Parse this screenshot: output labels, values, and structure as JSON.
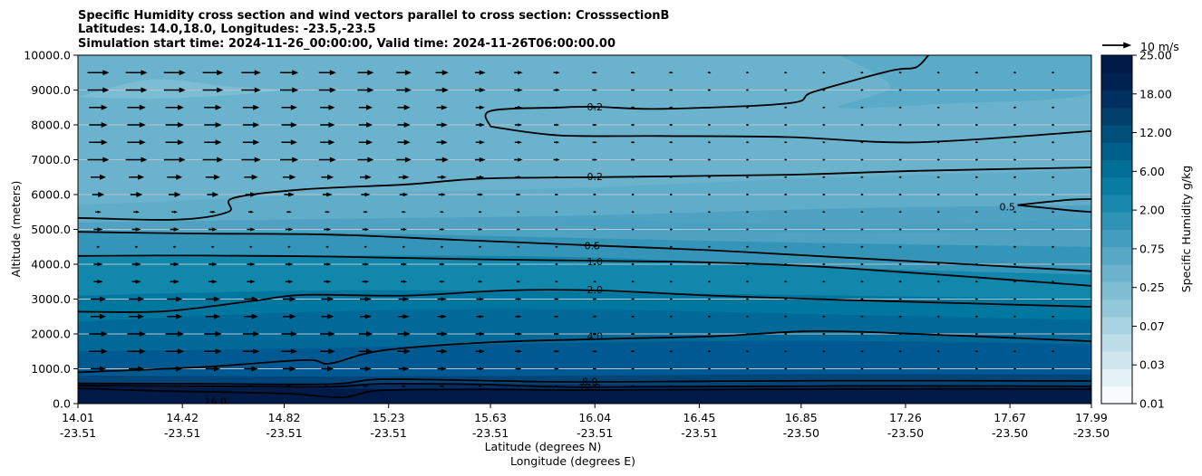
{
  "chart_data": {
    "type": "heatmap",
    "subtype": "contourf cross-section with contour lines and wind vectors",
    "title_lines": [
      "Specific Humidity cross section and wind vectors parallel to cross section: CrosssectionB",
      "Latitudes: 14.0,18.0, Longitudes: -23.5,-23.5",
      "Simulation start time: 2024-11-26_00:00:00, Valid time: 2024-11-26T06:00:00.00"
    ],
    "xlabel_lines": [
      "Latitude (degrees N)",
      "Longitude (degrees E)"
    ],
    "ylabel": "Altitude (meters)",
    "xlim": [
      14.01,
      17.99
    ],
    "ylim": [
      0,
      10000
    ],
    "x_ticks": [
      {
        "lat": "14.01",
        "lon": "-23.51",
        "value": 14.01
      },
      {
        "lat": "14.42",
        "lon": "-23.51",
        "value": 14.42
      },
      {
        "lat": "14.82",
        "lon": "-23.51",
        "value": 14.82
      },
      {
        "lat": "15.23",
        "lon": "-23.51",
        "value": 15.23
      },
      {
        "lat": "15.63",
        "lon": "-23.51",
        "value": 15.63
      },
      {
        "lat": "16.04",
        "lon": "-23.51",
        "value": 16.04
      },
      {
        "lat": "16.45",
        "lon": "-23.51",
        "value": 16.45
      },
      {
        "lat": "16.85",
        "lon": "-23.50",
        "value": 16.85
      },
      {
        "lat": "17.26",
        "lon": "-23.50",
        "value": 17.26
      },
      {
        "lat": "17.67",
        "lon": "-23.50",
        "value": 17.67
      },
      {
        "lat": "17.99",
        "lon": "-23.50",
        "value": 17.99
      }
    ],
    "y_ticks": [
      {
        "label": "0.0",
        "value": 0
      },
      {
        "label": "1000.0",
        "value": 1000
      },
      {
        "label": "2000.0",
        "value": 2000
      },
      {
        "label": "3000.0",
        "value": 3000
      },
      {
        "label": "4000.0",
        "value": 4000
      },
      {
        "label": "5000.0",
        "value": 5000
      },
      {
        "label": "6000.0",
        "value": 6000
      },
      {
        "label": "7000.0",
        "value": 7000
      },
      {
        "label": "8000.0",
        "value": 8000
      },
      {
        "label": "9000.0",
        "value": 9000
      },
      {
        "label": "10000.0",
        "value": 10000
      }
    ],
    "grid": "horizontal",
    "colorbar": {
      "label": "Specific Humidity g/kg",
      "tick_labels": [
        "0.01",
        "0.03",
        "0.07",
        "0.25",
        "0.75",
        "2.00",
        "6.00",
        "12.00",
        "18.00",
        "25.00"
      ],
      "colors": [
        "#f7fbfc",
        "#e4f1f5",
        "#d0e6ee",
        "#bcdde8",
        "#a7d2e1",
        "#93c8da",
        "#7fbdd3",
        "#6bb3cc",
        "#57a8c5",
        "#439ebd",
        "#2f93b6",
        "#1b89af",
        "#0a7ca4",
        "#006e96",
        "#005f88",
        "#004f7a",
        "#003f6b",
        "#00305d",
        "#002250",
        "#001a48"
      ]
    },
    "quiver_key": {
      "label": "10 m/s",
      "speed": 10
    },
    "bands": [
      {
        "color": "#001a48",
        "top": [
          [
            14.01,
            500
          ],
          [
            15.0,
            430
          ],
          [
            16.0,
            400
          ],
          [
            17.0,
            410
          ],
          [
            17.99,
            400
          ]
        ]
      },
      {
        "color": "#002d62",
        "top": [
          [
            14.01,
            560
          ],
          [
            15.0,
            570
          ],
          [
            15.6,
            560
          ],
          [
            16.5,
            520
          ],
          [
            17.99,
            520
          ]
        ]
      },
      {
        "color": "#00457a",
        "top": [
          [
            14.01,
            800
          ],
          [
            15.0,
            780
          ],
          [
            16.0,
            800
          ],
          [
            17.0,
            850
          ],
          [
            17.99,
            830
          ]
        ]
      },
      {
        "color": "#005990",
        "top": [
          [
            14.01,
            1500
          ],
          [
            15.0,
            1600
          ],
          [
            16.0,
            1750
          ],
          [
            17.0,
            1800
          ],
          [
            17.99,
            1700
          ]
        ]
      },
      {
        "color": "#006997",
        "top": [
          [
            14.01,
            2350
          ],
          [
            15.0,
            2650
          ],
          [
            16.0,
            2700
          ],
          [
            17.0,
            2550
          ],
          [
            17.99,
            2400
          ]
        ]
      },
      {
        "color": "#00779f",
        "top": [
          [
            14.01,
            3100
          ],
          [
            15.0,
            3250
          ],
          [
            16.0,
            3200
          ],
          [
            17.0,
            3100
          ],
          [
            17.99,
            3000
          ]
        ]
      },
      {
        "color": "#1287ac",
        "top": [
          [
            14.01,
            4200
          ],
          [
            15.0,
            4250
          ],
          [
            16.0,
            4200
          ],
          [
            17.0,
            3900
          ],
          [
            17.99,
            3700
          ]
        ]
      },
      {
        "color": "#3595b8",
        "top": [
          [
            14.01,
            4900
          ],
          [
            15.0,
            4900
          ],
          [
            16.0,
            4750
          ],
          [
            17.0,
            4600
          ],
          [
            17.99,
            4500
          ]
        ]
      },
      {
        "color": "#4fa2c2",
        "top": [
          [
            14.01,
            5200
          ],
          [
            15.0,
            5300
          ],
          [
            16.0,
            5400
          ],
          [
            17.0,
            5600
          ],
          [
            17.99,
            5700
          ]
        ]
      },
      {
        "color": "#5fadc8",
        "top": [
          [
            14.01,
            5700
          ],
          [
            15.0,
            6000
          ],
          [
            16.0,
            6200
          ],
          [
            17.0,
            6500
          ],
          [
            17.99,
            6700
          ]
        ]
      },
      {
        "color": "#6bb3cc",
        "top": [
          [
            14.01,
            10000
          ],
          [
            17.99,
            10000
          ]
        ]
      }
    ],
    "patches": [
      {
        "color": "#7dbdd4",
        "points": [
          [
            14.01,
            8800
          ],
          [
            14.3,
            9300
          ],
          [
            14.6,
            9100
          ],
          [
            14.8,
            9000
          ],
          [
            14.6,
            8850
          ],
          [
            14.3,
            8750
          ]
        ]
      },
      {
        "color": "#4aa0c2",
        "points": [
          [
            16.0,
            5300
          ],
          [
            16.5,
            5200
          ],
          [
            17.2,
            5100
          ],
          [
            17.99,
            5300
          ],
          [
            17.99,
            5000
          ],
          [
            17.0,
            4900
          ],
          [
            16.3,
            5000
          ],
          [
            15.9,
            5150
          ]
        ]
      },
      {
        "color": "#5aaac8",
        "points": [
          [
            17.0,
            10000
          ],
          [
            17.99,
            10000
          ],
          [
            17.99,
            8900
          ],
          [
            17.4,
            8600
          ],
          [
            17.0,
            8500
          ],
          [
            17.2,
            9100
          ]
        ]
      },
      {
        "color": "#001a48",
        "points": [
          [
            15.08,
            0
          ],
          [
            15.12,
            150
          ],
          [
            15.2,
            190
          ],
          [
            15.28,
            150
          ],
          [
            15.34,
            0
          ]
        ]
      }
    ],
    "contours": [
      {
        "label": "16.0",
        "label_at": [
          14.55,
          70
        ],
        "points": [
          [
            14.01,
            440
          ],
          [
            14.3,
            370
          ],
          [
            14.6,
            330
          ],
          [
            14.85,
            280
          ],
          [
            15.05,
            180
          ],
          [
            15.2,
            380
          ],
          [
            15.6,
            410
          ],
          [
            16.0,
            390
          ],
          [
            17.0,
            420
          ],
          [
            17.99,
            420
          ]
        ]
      },
      {
        "label": "12.0",
        "label_at": [
          16.02,
          470
        ],
        "points": [
          [
            14.01,
            520
          ],
          [
            14.5,
            500
          ],
          [
            15.0,
            480
          ],
          [
            15.2,
            570
          ],
          [
            15.6,
            550
          ],
          [
            16.0,
            470
          ],
          [
            17.0,
            510
          ],
          [
            17.99,
            500
          ]
        ]
      },
      {
        "label": "8.0",
        "label_at": [
          16.02,
          630
        ],
        "points": [
          [
            14.01,
            580
          ],
          [
            14.5,
            570
          ],
          [
            15.0,
            560
          ],
          [
            15.2,
            700
          ],
          [
            15.6,
            660
          ],
          [
            16.0,
            620
          ],
          [
            17.0,
            660
          ],
          [
            17.99,
            650
          ]
        ]
      },
      {
        "label": "4.0",
        "label_at": [
          16.04,
          1930
        ],
        "points": [
          [
            14.01,
            900
          ],
          [
            14.5,
            1050
          ],
          [
            14.9,
            1250
          ],
          [
            15.0,
            1150
          ],
          [
            15.2,
            1520
          ],
          [
            15.6,
            1750
          ],
          [
            16.04,
            1850
          ],
          [
            16.5,
            1930
          ],
          [
            16.9,
            2080
          ],
          [
            17.3,
            2000
          ],
          [
            17.99,
            1790
          ]
        ]
      },
      {
        "label": "2.0",
        "label_at": [
          16.04,
          3270
        ],
        "points": [
          [
            14.01,
            2640
          ],
          [
            14.35,
            2650
          ],
          [
            14.7,
            2950
          ],
          [
            14.9,
            3120
          ],
          [
            15.3,
            3100
          ],
          [
            15.7,
            3250
          ],
          [
            16.04,
            3250
          ],
          [
            16.5,
            3100
          ],
          [
            17.0,
            2980
          ],
          [
            17.99,
            2780
          ]
        ]
      },
      {
        "label": "1.0",
        "label_at": [
          16.04,
          4080
        ],
        "points": [
          [
            14.01,
            4240
          ],
          [
            14.5,
            4250
          ],
          [
            15.0,
            4220
          ],
          [
            15.5,
            4150
          ],
          [
            16.04,
            4100
          ],
          [
            16.5,
            4050
          ],
          [
            17.0,
            3900
          ],
          [
            17.99,
            3380
          ]
        ]
      },
      {
        "label": "0.5",
        "label_at": [
          16.03,
          4530
        ],
        "points": [
          [
            14.01,
            4930
          ],
          [
            14.5,
            4880
          ],
          [
            15.0,
            4850
          ],
          [
            15.5,
            4700
          ],
          [
            16.03,
            4540
          ],
          [
            16.5,
            4400
          ],
          [
            17.0,
            4200
          ],
          [
            17.99,
            3800
          ]
        ]
      },
      {
        "label": "0.2",
        "label_at": [
          16.04,
          6520
        ],
        "points": [
          [
            14.01,
            5330
          ],
          [
            14.4,
            5280
          ],
          [
            14.6,
            5500
          ],
          [
            14.62,
            5900
          ],
          [
            14.9,
            6150
          ],
          [
            15.3,
            6290
          ],
          [
            15.6,
            6460
          ],
          [
            16.04,
            6500
          ],
          [
            16.8,
            6570
          ],
          [
            17.3,
            6680
          ],
          [
            17.99,
            6780
          ]
        ]
      },
      {
        "label": "0.2",
        "label_at": [
          16.04,
          8520
        ],
        "points": [
          [
            15.63,
            7950
          ],
          [
            15.63,
            8400
          ],
          [
            15.9,
            8500
          ],
          [
            16.04,
            8520
          ],
          [
            16.3,
            8460
          ],
          [
            16.8,
            8620
          ],
          [
            16.9,
            8950
          ],
          [
            17.2,
            9550
          ],
          [
            17.3,
            9650
          ],
          [
            17.35,
            10000
          ]
        ]
      },
      {
        "label": "0.5",
        "label_at": [
          17.66,
          5650
        ],
        "points": [
          [
            17.7,
            5700
          ],
          [
            17.9,
            5850
          ],
          [
            17.99,
            5870
          ]
        ]
      }
    ],
    "extra_lines": [
      {
        "points": [
          [
            15.63,
            7950
          ],
          [
            15.9,
            7700
          ],
          [
            16.3,
            7680
          ],
          [
            16.8,
            7650
          ],
          [
            17.3,
            7500
          ],
          [
            17.99,
            7820
          ]
        ]
      },
      {
        "points": [
          [
            17.7,
            5700
          ],
          [
            17.9,
            5550
          ],
          [
            17.99,
            5500
          ]
        ]
      }
    ],
    "wind_vectors": {
      "rows_m": [
        500,
        1000,
        1500,
        2000,
        2500,
        3000,
        3500,
        4000,
        4500,
        5000,
        5500,
        6000,
        6500,
        7000,
        7500,
        8000,
        8500,
        9000,
        9500
      ],
      "columns_deg": [
        14.09,
        14.24,
        14.39,
        14.54,
        14.69,
        14.84,
        14.99,
        15.14,
        15.29,
        15.44,
        15.59,
        15.74,
        15.89,
        16.04,
        16.19,
        16.34,
        16.49,
        16.64,
        16.79,
        16.94,
        17.09,
        17.24,
        17.39,
        17.54,
        17.69,
        17.84
      ],
      "speed_ms_by_row": [
        2.0,
        5.0,
        6.0,
        6.0,
        5.0,
        5.0,
        3.0,
        3.0,
        1.0,
        3.0,
        2.0,
        4.0,
        5.0,
        7.0,
        6.0,
        6.0,
        6.0,
        7.0,
        7.0
      ],
      "speed_scale_by_column": [
        1.0,
        1.0,
        1.0,
        0.95,
        0.9,
        0.85,
        0.8,
        0.75,
        0.7,
        0.6,
        0.5,
        0.4,
        0.3,
        0.25,
        0.2,
        0.18,
        0.15,
        0.12,
        0.1,
        0.08,
        0.06,
        0.05,
        0.04,
        0.03,
        0.02,
        0.02
      ]
    }
  }
}
